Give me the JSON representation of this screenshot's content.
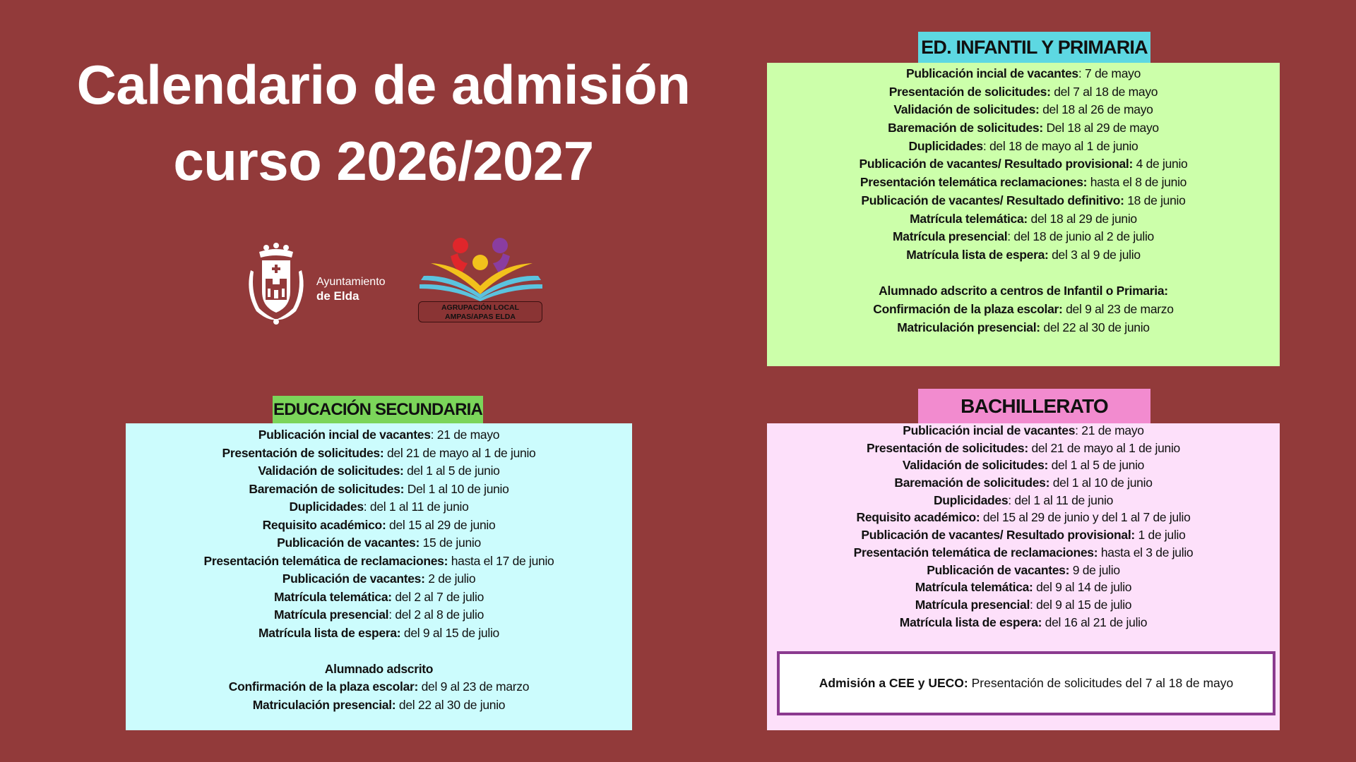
{
  "title": {
    "line1": "Calendario de admisión",
    "line2": "curso 2026/2027"
  },
  "logos": {
    "ayuntamiento": {
      "line1": "Ayuntamiento",
      "line2": "de Elda"
    },
    "ampas": {
      "line1": "AGRUPACIÓN LOCAL",
      "line2": "AMPAS/APAS ELDA"
    }
  },
  "colors": {
    "background": "#923a3a",
    "infantil_header": "#5dd8e2",
    "infantil_box": "#ccffaa",
    "secundaria_header": "#7bd55a",
    "secundaria_box": "#ccfcfd",
    "bachillerato_header": "#f28bcf",
    "bachillerato_box": "#fde0fa",
    "cee_border": "#8b3a8f"
  },
  "infantil": {
    "heading": "ED. INFANTIL Y PRIMARIA",
    "items": [
      {
        "label": "Publicación incial de vacantes",
        "value": ": 7 de mayo"
      },
      {
        "label": "Presentación de solicitudes:",
        "value": " del 7 al 18 de mayo"
      },
      {
        "label": "Validación de solicitudes:",
        "value": " del 18 al 26 de mayo"
      },
      {
        "label": "Baremación de solicitudes:",
        "value": " Del 18 al 29 de mayo"
      },
      {
        "label": "Duplicidades",
        "value": ":  del 18 de mayo al 1 de junio"
      },
      {
        "label": "Publicación de vacantes/ Resultado provisional:",
        "value": " 4 de junio"
      },
      {
        "label": "Presentación telemática reclamaciones:",
        "value": " hasta el 8 de junio"
      },
      {
        "label": "Publicación de vacantes/ Resultado definitivo:",
        "value": " 18 de junio"
      },
      {
        "label": "Matrícula telemática:",
        "value": " del 18 al 29 de junio"
      },
      {
        "label": "Matrícula presencial",
        "value": ": del 18 de junio al 2 de julio"
      },
      {
        "label": "Matrícula lista de espera:",
        "value": " del 3 al 9 de julio"
      }
    ],
    "adscrito_heading": "Alumnado adscrito a centros de Infantil o Primaria:",
    "adscrito_items": [
      {
        "label": "Confirmación de la plaza escolar:",
        "value": " del 9 al 23 de marzo"
      },
      {
        "label": "Matriculación presencial:",
        "value": " del 22 al 30 de junio"
      }
    ]
  },
  "secundaria": {
    "heading": "EDUCACIÓN SECUNDARIA",
    "items": [
      {
        "label": "Publicación incial de vacantes",
        "value": ": 21 de mayo"
      },
      {
        "label": "Presentación de solicitudes:",
        "value": " del 21 de mayo al 1 de junio"
      },
      {
        "label": "Validación de solicitudes:",
        "value": " del 1 al 5 de junio"
      },
      {
        "label": "Baremación de solicitudes:",
        "value": " Del 1 al 10 de junio"
      },
      {
        "label": "Duplicidades",
        "value": ":  del 1 al 11 de junio"
      },
      {
        "label": "Requisito académico:",
        "value": " del 15 al 29 de junio"
      },
      {
        "label": "Publicación de vacantes:",
        "value": " 15 de junio"
      },
      {
        "label": "Presentación telemática de reclamaciones:",
        "value": " hasta el 17 de junio"
      },
      {
        "label": "Publicación de vacantes:",
        "value": " 2 de julio"
      },
      {
        "label": "Matrícula telemática:",
        "value": " del 2 al 7 de julio"
      },
      {
        "label": "Matrícula presencial",
        "value": ": del 2 al 8 de julio"
      },
      {
        "label": "Matrícula lista de espera:",
        "value": " del 9 al 15 de julio"
      }
    ],
    "adscrito_heading": "Alumnado adscrito",
    "adscrito_items": [
      {
        "label": "Confirmación de la plaza escolar:",
        "value": " del 9 al 23 de marzo"
      },
      {
        "label": "Matriculación presencial:",
        "value": " del 22 al 30 de junio"
      }
    ]
  },
  "bachillerato": {
    "heading": "BACHILLERATO",
    "items": [
      {
        "label": "Publicación incial de vacantes",
        "value": ":  21 de mayo"
      },
      {
        "label": "Presentación de solicitudes:",
        "value": " del 21 de mayo al 1 de junio"
      },
      {
        "label": "Validación de solicitudes:",
        "value": " del 1 al 5 de junio"
      },
      {
        "label": "Baremación de solicitudes:",
        "value": " del 1 al 10 de junio"
      },
      {
        "label": "Duplicidades",
        "value": ":  del 1 al 11 de junio"
      },
      {
        "label": "Requisito académico:",
        "value": " del 15 al 29 de junio y del 1 al 7 de julio"
      },
      {
        "label": "Publicación de vacantes/ Resultado provisional:",
        "value": " 1 de julio"
      },
      {
        "label": "Presentación telemática de reclamaciones:",
        "value": " hasta el 3 de julio"
      },
      {
        "label": "Publicación de vacantes:",
        "value": " 9 de julio"
      },
      {
        "label": "Matrícula telemática:",
        "value": " del 9 al 14 de julio"
      },
      {
        "label": "Matrícula presencial",
        "value": ": del 9 al 15 de julio"
      },
      {
        "label": "Matrícula lista de espera:",
        "value": " del 16 al 21 de julio"
      }
    ],
    "cee": {
      "label": "Admisión a CEE y UECO:",
      "value": " Presentación de solicitudes del 7 al 18 de mayo"
    }
  }
}
